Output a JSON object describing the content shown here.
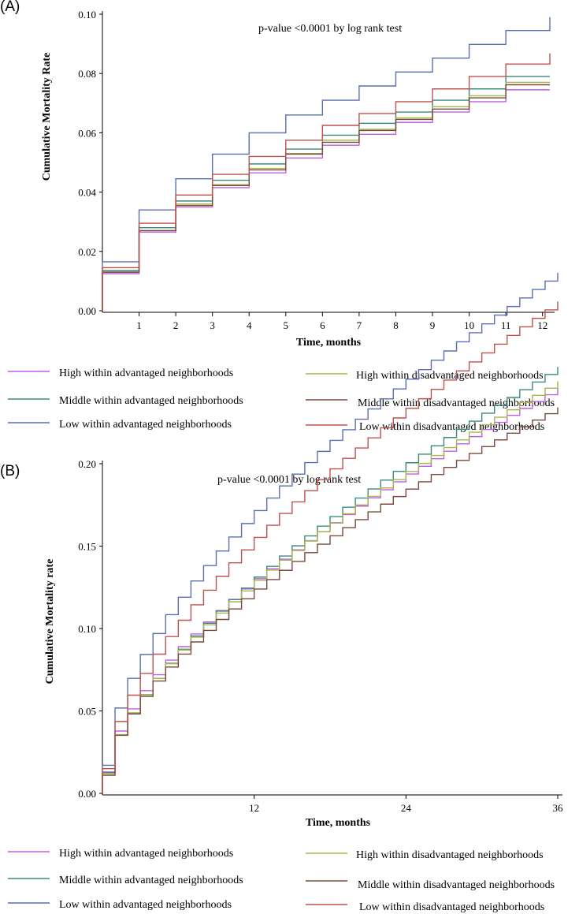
{
  "panels": [
    {
      "label": "(A)",
      "annotation": "p-value <0.0001 by log rank test",
      "legend": {
        "left": [
          {
            "name": "High within advantaged neighborhoods",
            "color": "#c05ee8"
          },
          {
            "name": "Middle within advantaged neighborhoods",
            "color": "#3a8a7c"
          },
          {
            "name": "Low within advantaged neighborhoods",
            "color": "#5a6fb0"
          }
        ],
        "right": [
          {
            "name": "High within disadvantaged neighborhoods",
            "color": "#a7b54a"
          },
          {
            "name": "Middle within disadvantaged neighborhoods",
            "color": "#7a4a3a"
          },
          {
            "name": "Low within disadvantaged neighborhoods",
            "color": "#c0504d"
          }
        ]
      }
    },
    {
      "label": "(B)",
      "annotation": "p-value <0.0001 by log rank test",
      "legend": {
        "left": [
          {
            "name": "High within advantaged neighborhoods",
            "color": "#c05ee8"
          },
          {
            "name": "Middle within advantaged neighborhoods",
            "color": "#3a8a7c"
          },
          {
            "name": "Low within advantaged neighborhoods",
            "color": "#5a6fb0"
          }
        ],
        "right": [
          {
            "name": "High within disadvantaged neighborhoods",
            "color": "#a7b54a"
          },
          {
            "name": "Middle within disadvantaged neighborhoods",
            "color": "#7a4a3a"
          },
          {
            "name": "Low within disadvantaged neighborhoods",
            "color": "#c0504d"
          }
        ]
      }
    }
  ],
  "chart_data": [
    {
      "type": "line",
      "step": true,
      "xlabel": "Time, months",
      "ylabel": "Cumulative Mortality Rate",
      "xlim": [
        0,
        12.2
      ],
      "ylim": [
        0,
        0.1
      ],
      "xticks": [
        1,
        2,
        3,
        4,
        5,
        6,
        7,
        8,
        9,
        10,
        11,
        12
      ],
      "yticks": [
        "0.00",
        "0.02",
        "0.04",
        "0.06",
        "0.08",
        "0.10"
      ],
      "grid": false,
      "x": [
        0,
        1,
        2,
        3,
        4,
        5,
        6,
        7,
        8,
        9,
        10,
        11
      ],
      "series": [
        {
          "name": "High within advantaged neighborhoods",
          "color": "#c05ee8",
          "values": [
            0.0125,
            0.0265,
            0.035,
            0.0415,
            0.0465,
            0.0515,
            0.0558,
            0.0595,
            0.0635,
            0.067,
            0.0705,
            0.0745
          ],
          "end": 12.2
        },
        {
          "name": "Middle within advantaged neighborhoods",
          "color": "#3a8a7c",
          "values": [
            0.0135,
            0.028,
            0.037,
            0.044,
            0.0495,
            0.0545,
            0.0592,
            0.0632,
            0.067,
            0.071,
            0.0748,
            0.079
          ],
          "end": 12.2
        },
        {
          "name": "Low within advantaged neighborhoods",
          "color": "#5a6fb0",
          "values": [
            0.0165,
            0.034,
            0.0445,
            0.0528,
            0.06,
            0.066,
            0.071,
            0.0758,
            0.0805,
            0.0852,
            0.0898,
            0.0945
          ],
          "end": 12.2,
          "final": 0.099
        },
        {
          "name": "High within disadvantaged neighborhoods",
          "color": "#a7b54a",
          "values": [
            0.013,
            0.027,
            0.036,
            0.0425,
            0.048,
            0.053,
            0.0575,
            0.0612,
            0.065,
            0.0688,
            0.0725,
            0.077
          ],
          "end": 12.2
        },
        {
          "name": "Middle within disadvantaged neighborhoods",
          "color": "#7a4a3a",
          "values": [
            0.013,
            0.027,
            0.0355,
            0.0422,
            0.0475,
            0.0528,
            0.0568,
            0.0608,
            0.0645,
            0.068,
            0.0718,
            0.0762
          ],
          "end": 12.2
        },
        {
          "name": "Low within disadvantaged neighborhoods",
          "color": "#c0504d",
          "values": [
            0.0145,
            0.0295,
            0.039,
            0.046,
            0.052,
            0.0575,
            0.0625,
            0.0665,
            0.0705,
            0.0748,
            0.079,
            0.0832
          ],
          "end": 12.2,
          "final": 0.0868
        }
      ]
    },
    {
      "type": "line",
      "step": true,
      "xlabel": "Time, months",
      "ylabel": "Cumulative Mortality rate",
      "xlim": [
        0,
        36
      ],
      "ylim": [
        0,
        0.2
      ],
      "xticks": [
        12,
        24,
        36
      ],
      "yticks": [
        "0.00",
        "0.05",
        "0.10",
        "0.15",
        "0.20"
      ],
      "grid": false,
      "steps": 36,
      "series": [
        {
          "name": "High within advantaged neighborhoods",
          "color": "#c05ee8",
          "start": 0.013,
          "k": 0.0248,
          "exp": 0.625,
          "end": 36
        },
        {
          "name": "Middle within advantaged neighborhoods",
          "color": "#3a8a7c",
          "start": 0.0125,
          "k": 0.0228,
          "exp": 0.664,
          "end": 36
        },
        {
          "name": "Low within advantaged neighborhoods",
          "color": "#5a6fb0",
          "start": 0.017,
          "k": 0.0348,
          "exp": 0.6,
          "end": 36
        },
        {
          "name": "High within disadvantaged neighborhoods",
          "color": "#a7b54a",
          "start": 0.012,
          "k": 0.0236,
          "exp": 0.645,
          "end": 36
        },
        {
          "name": "Middle within disadvantaged neighborhoods",
          "color": "#7a4a3a",
          "start": 0.011,
          "k": 0.0242,
          "exp": 0.62,
          "end": 36
        },
        {
          "name": "Low within disadvantaged neighborhoods",
          "color": "#c0504d",
          "start": 0.015,
          "k": 0.0286,
          "exp": 0.64,
          "end": 36
        }
      ]
    }
  ]
}
